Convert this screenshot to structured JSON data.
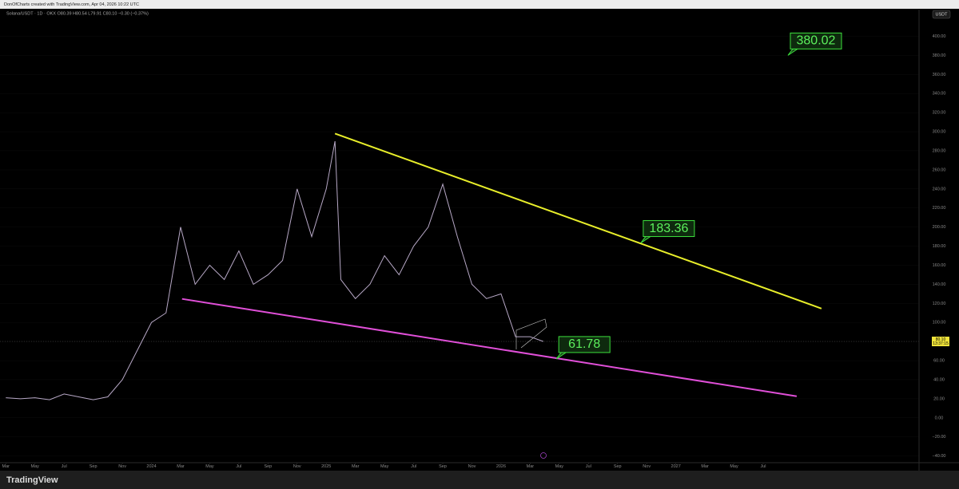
{
  "header": {
    "credit": "DonOfCharts created with TradingView.com, Apr 04, 2026 10:22 UTC",
    "legend": "Solana/USDT · 1D · OKX  O80.39 H80.54 L79.91 C80.10 −0.30 (−0.37%)",
    "currency": "USDT",
    "brand": "TradingView"
  },
  "chart_data": {
    "type": "line",
    "x": [
      0,
      1,
      2,
      3,
      4,
      5,
      6,
      7,
      8,
      9,
      10,
      11,
      12,
      13,
      14,
      15,
      16,
      17,
      18,
      19,
      20,
      21,
      22,
      22.6,
      23,
      24,
      25,
      26,
      27,
      28,
      29,
      30,
      31,
      32,
      33,
      34,
      35,
      36,
      36.9
    ],
    "series": [
      {
        "name": "Solana/USDT",
        "color": "#b7a8c6",
        "values": [
          21,
          20,
          21,
          19,
          25,
          22,
          19,
          22,
          40,
          70,
          100,
          110,
          200,
          140,
          160,
          145,
          175,
          140,
          150,
          165,
          240,
          190,
          240,
          290,
          145,
          125,
          140,
          170,
          150,
          180,
          200,
          245,
          190,
          140,
          125,
          130,
          85,
          85,
          80.1
        ]
      }
    ],
    "xlim": [
      -0.4,
      62.7
    ],
    "xticks": [
      {
        "value": 0,
        "label": "Mar"
      },
      {
        "value": 2,
        "label": "May"
      },
      {
        "value": 4,
        "label": "Jul"
      },
      {
        "value": 6,
        "label": "Sep"
      },
      {
        "value": 8,
        "label": "Nov"
      },
      {
        "value": 10,
        "label": "2024"
      },
      {
        "value": 12,
        "label": "Mar"
      },
      {
        "value": 14,
        "label": "May"
      },
      {
        "value": 16,
        "label": "Jul"
      },
      {
        "value": 18,
        "label": "Sep"
      },
      {
        "value": 20,
        "label": "Nov"
      },
      {
        "value": 22,
        "label": "2025"
      },
      {
        "value": 24,
        "label": "Mar"
      },
      {
        "value": 26,
        "label": "May"
      },
      {
        "value": 28,
        "label": "Jul"
      },
      {
        "value": 30,
        "label": "Sep"
      },
      {
        "value": 32,
        "label": "Nov"
      },
      {
        "value": 34,
        "label": "2026"
      },
      {
        "value": 36,
        "label": "Mar"
      },
      {
        "value": 38,
        "label": "May"
      },
      {
        "value": 40,
        "label": "Jul"
      },
      {
        "value": 42,
        "label": "Sep"
      },
      {
        "value": 44,
        "label": "Nov"
      },
      {
        "value": 46,
        "label": "2027"
      },
      {
        "value": 48,
        "label": "Mar"
      },
      {
        "value": 50,
        "label": "May"
      },
      {
        "value": 52,
        "label": "Jul"
      }
    ],
    "ylim": [
      -47,
      428
    ],
    "yticks": [
      {
        "value": -40,
        "label": "−40.00"
      },
      {
        "value": -20,
        "label": "−20.00"
      },
      {
        "value": 0,
        "label": "0.00"
      },
      {
        "value": 20,
        "label": "20.00"
      },
      {
        "value": 40,
        "label": "40.00"
      },
      {
        "value": 60,
        "label": "60.00"
      },
      {
        "value": 80,
        "label": "80.00"
      },
      {
        "value": 100,
        "label": "100.00"
      },
      {
        "value": 120,
        "label": "120.00"
      },
      {
        "value": 140,
        "label": "140.00"
      },
      {
        "value": 160,
        "label": "160.00"
      },
      {
        "value": 180,
        "label": "180.00"
      },
      {
        "value": 200,
        "label": "200.00"
      },
      {
        "value": 220,
        "label": "220.00"
      },
      {
        "value": 240,
        "label": "240.00"
      },
      {
        "value": 260,
        "label": "260.00"
      },
      {
        "value": 280,
        "label": "280.00"
      },
      {
        "value": 300,
        "label": "300.00"
      },
      {
        "value": 320,
        "label": "320.00"
      },
      {
        "value": 340,
        "label": "340.00"
      },
      {
        "value": 360,
        "label": "360.00"
      },
      {
        "value": 380,
        "label": "380.00"
      },
      {
        "value": 400,
        "label": "400.00"
      }
    ],
    "last_price": {
      "value": 80.1,
      "label": "80.10",
      "countdown": "13:37:15"
    },
    "trendlines": [
      {
        "color": "#e8ee2a",
        "x": [
          22.6,
          56.0
        ],
        "values": [
          298,
          114.6
        ]
      },
      {
        "color": "#e04fd8",
        "x": [
          12.1,
          54.3
        ],
        "values": [
          124.7,
          22.6
        ]
      }
    ],
    "annotations": [
      {
        "x": 53.7,
        "value": 380.02
      },
      {
        "x": 43.6,
        "value": 183.36
      },
      {
        "x": 37.8,
        "value": 61.78
      }
    ]
  }
}
